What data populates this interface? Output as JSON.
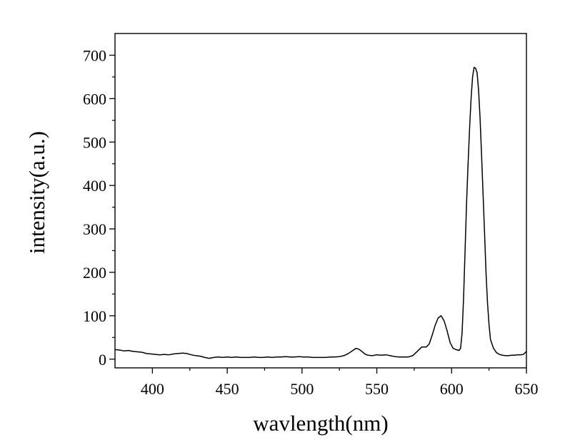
{
  "chart_data": {
    "type": "line",
    "title": "",
    "xlabel": "wavlength(nm)",
    "ylabel": "intensity(a.u.)",
    "xlim": [
      375,
      650
    ],
    "ylim": [
      -20,
      750
    ],
    "x_ticks": [
      400,
      450,
      500,
      550,
      600,
      650
    ],
    "y_ticks": [
      0,
      100,
      200,
      300,
      400,
      500,
      600,
      700
    ],
    "grid": false,
    "legend": "none",
    "series": [
      {
        "color": "#000000",
        "points": [
          [
            375,
            22
          ],
          [
            378,
            21
          ],
          [
            381,
            19
          ],
          [
            384,
            20
          ],
          [
            387,
            18
          ],
          [
            390,
            17
          ],
          [
            393,
            16
          ],
          [
            396,
            13
          ],
          [
            399,
            12
          ],
          [
            402,
            11
          ],
          [
            405,
            10
          ],
          [
            408,
            11
          ],
          [
            411,
            10
          ],
          [
            414,
            12
          ],
          [
            417,
            13
          ],
          [
            420,
            14
          ],
          [
            423,
            13
          ],
          [
            426,
            10
          ],
          [
            429,
            8
          ],
          [
            432,
            7
          ],
          [
            435,
            4
          ],
          [
            438,
            2
          ],
          [
            441,
            4
          ],
          [
            444,
            5
          ],
          [
            447,
            4
          ],
          [
            450,
            5
          ],
          [
            453,
            4
          ],
          [
            456,
            5
          ],
          [
            459,
            4
          ],
          [
            462,
            4
          ],
          [
            465,
            4
          ],
          [
            468,
            5
          ],
          [
            471,
            4
          ],
          [
            474,
            4
          ],
          [
            477,
            5
          ],
          [
            480,
            4
          ],
          [
            483,
            5
          ],
          [
            486,
            5
          ],
          [
            489,
            6
          ],
          [
            492,
            5
          ],
          [
            495,
            5
          ],
          [
            498,
            6
          ],
          [
            501,
            5
          ],
          [
            504,
            5
          ],
          [
            507,
            4
          ],
          [
            510,
            4
          ],
          [
            513,
            4
          ],
          [
            516,
            4
          ],
          [
            519,
            5
          ],
          [
            522,
            5
          ],
          [
            525,
            6
          ],
          [
            528,
            8
          ],
          [
            531,
            13
          ],
          [
            534,
            20
          ],
          [
            536,
            25
          ],
          [
            538,
            23
          ],
          [
            540,
            18
          ],
          [
            542,
            12
          ],
          [
            544,
            9
          ],
          [
            547,
            8
          ],
          [
            550,
            10
          ],
          [
            553,
            9
          ],
          [
            556,
            10
          ],
          [
            559,
            8
          ],
          [
            562,
            6
          ],
          [
            565,
            5
          ],
          [
            568,
            5
          ],
          [
            571,
            5
          ],
          [
            574,
            8
          ],
          [
            577,
            18
          ],
          [
            580,
            28
          ],
          [
            583,
            28
          ],
          [
            585,
            35
          ],
          [
            587,
            55
          ],
          [
            589,
            78
          ],
          [
            591,
            95
          ],
          [
            593,
            100
          ],
          [
            595,
            88
          ],
          [
            597,
            65
          ],
          [
            599,
            38
          ],
          [
            601,
            25
          ],
          [
            603,
            22
          ],
          [
            605,
            20
          ],
          [
            606,
            25
          ],
          [
            607,
            60
          ],
          [
            608,
            140
          ],
          [
            609,
            250
          ],
          [
            610,
            360
          ],
          [
            611,
            450
          ],
          [
            612,
            530
          ],
          [
            613,
            600
          ],
          [
            614,
            650
          ],
          [
            615,
            672
          ],
          [
            616,
            670
          ],
          [
            617,
            660
          ],
          [
            618,
            620
          ],
          [
            619,
            555
          ],
          [
            620,
            470
          ],
          [
            621,
            380
          ],
          [
            622,
            290
          ],
          [
            623,
            200
          ],
          [
            624,
            130
          ],
          [
            625,
            80
          ],
          [
            626,
            45
          ],
          [
            628,
            25
          ],
          [
            630,
            15
          ],
          [
            632,
            11
          ],
          [
            634,
            9
          ],
          [
            636,
            8
          ],
          [
            638,
            8
          ],
          [
            640,
            9
          ],
          [
            642,
            9
          ],
          [
            644,
            10
          ],
          [
            646,
            10
          ],
          [
            648,
            11
          ],
          [
            650,
            18
          ]
        ]
      }
    ]
  }
}
